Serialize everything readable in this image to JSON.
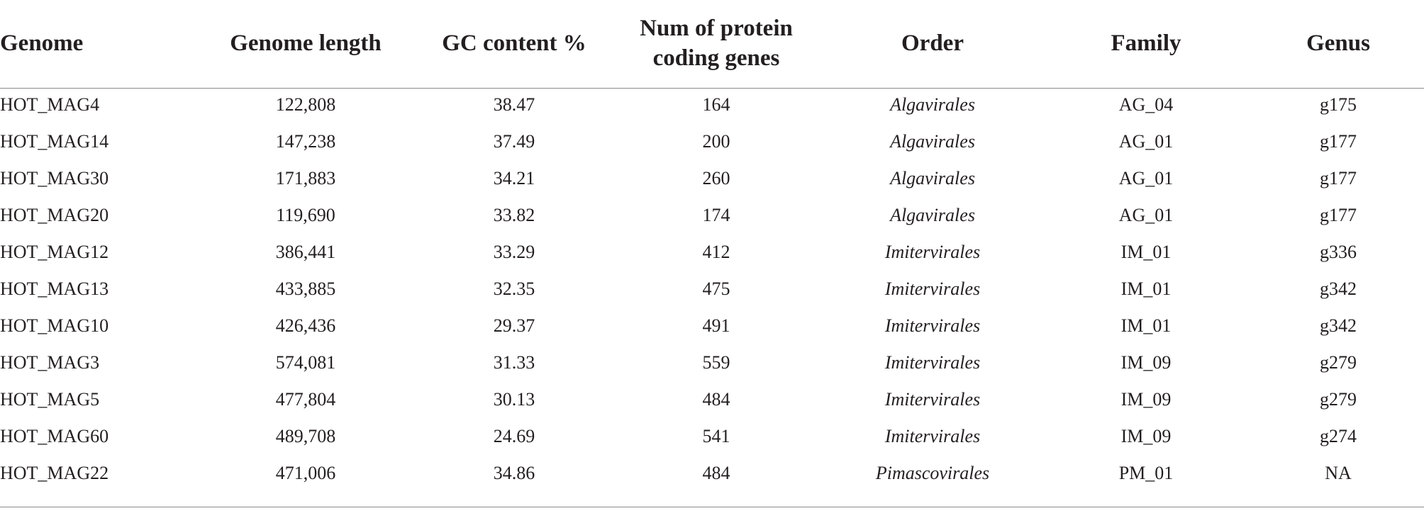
{
  "table": {
    "headers": [
      "Genome",
      "Genome length",
      "GC content %",
      "Num of protein coding genes",
      "Order",
      "Family",
      "Genus"
    ],
    "rows": [
      [
        "HOT_MAG4",
        "122,808",
        "38.47",
        "164",
        "Algavirales",
        "AG_04",
        "g175"
      ],
      [
        "HOT_MAG14",
        "147,238",
        "37.49",
        "200",
        "Algavirales",
        "AG_01",
        "g177"
      ],
      [
        "HOT_MAG30",
        "171,883",
        "34.21",
        "260",
        "Algavirales",
        "AG_01",
        "g177"
      ],
      [
        "HOT_MAG20",
        "119,690",
        "33.82",
        "174",
        "Algavirales",
        "AG_01",
        "g177"
      ],
      [
        "HOT_MAG12",
        "386,441",
        "33.29",
        "412",
        "Imitervirales",
        "IM_01",
        "g336"
      ],
      [
        "HOT_MAG13",
        "433,885",
        "32.35",
        "475",
        "Imitervirales",
        "IM_01",
        "g342"
      ],
      [
        "HOT_MAG10",
        "426,436",
        "29.37",
        "491",
        "Imitervirales",
        "IM_01",
        "g342"
      ],
      [
        "HOT_MAG3",
        "574,081",
        "31.33",
        "559",
        "Imitervirales",
        "IM_09",
        "g279"
      ],
      [
        "HOT_MAG5",
        "477,804",
        "30.13",
        "484",
        "Imitervirales",
        "IM_09",
        "g279"
      ],
      [
        "HOT_MAG60",
        "489,708",
        "24.69",
        "541",
        "Imitervirales",
        "IM_09",
        "g274"
      ],
      [
        "HOT_MAG22",
        "471,006",
        "34.86",
        "484",
        "Pimascovirales",
        "PM_01",
        "NA"
      ]
    ]
  }
}
